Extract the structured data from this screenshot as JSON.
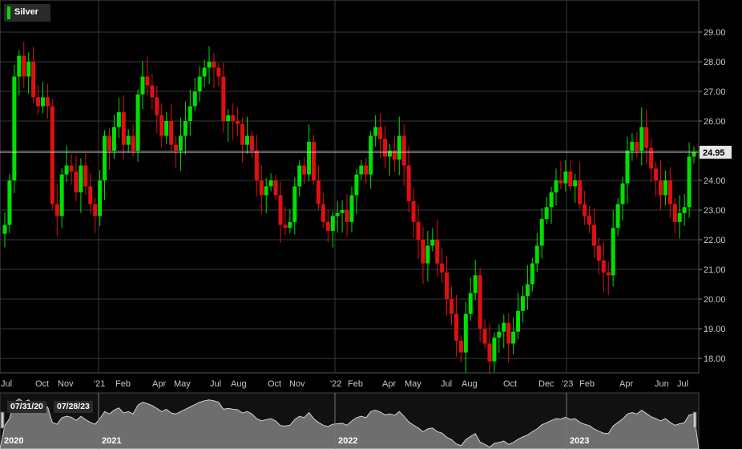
{
  "chart_data": {
    "type": "candlestick",
    "instrument": "Silver",
    "last_price": "24.95",
    "ylim": [
      17.6,
      30.0
    ],
    "y_ticks": [
      "18.00",
      "19.00",
      "20.00",
      "21.00",
      "22.00",
      "23.00",
      "24.00",
      "25.00",
      "26.00",
      "27.00",
      "28.00",
      "29.00"
    ],
    "x_tick_labels": [
      "Jul",
      "Oct",
      "Nov",
      "'21",
      "Feb",
      "Apr",
      "May",
      "Jul",
      "Aug",
      "Oct",
      "Nov",
      "'22",
      "Feb",
      "Apr",
      "May",
      "Jul",
      "Aug",
      "Oct",
      "Dec",
      "'23",
      "Feb",
      "Apr",
      "Jun",
      "Jul"
    ],
    "grid": true,
    "navigator": {
      "range_start": "07/31/20",
      "range_end": "07/28/23",
      "years": [
        "2020",
        "2021",
        "2022",
        "2023"
      ]
    },
    "series": [
      {
        "weeks": "Jul 2020",
        "close": [
          22.5,
          24.0,
          27.5,
          28.2
        ]
      },
      {
        "weeks": "Aug 2020",
        "close": [
          27.5,
          28.0,
          26.8,
          26.5
        ]
      },
      {
        "weeks": "Sep 2020",
        "close": [
          26.8,
          26.5,
          23.2,
          22.8
        ]
      },
      {
        "weeks": "Oct 2020",
        "close": [
          24.2,
          24.5,
          24.3,
          23.6
        ]
      },
      {
        "weeks": "Nov 2020",
        "close": [
          24.5,
          23.8,
          23.2,
          22.8,
          24.0
        ]
      },
      {
        "weeks": "Dec 2020",
        "close": [
          25.5,
          25.0,
          25.8,
          26.3
        ]
      },
      {
        "weeks": "Jan 2021",
        "close": [
          25.2,
          25.5,
          25.0,
          26.9
        ]
      },
      {
        "weeks": "Feb 2021",
        "close": [
          27.5,
          27.2,
          26.8,
          26.2
        ]
      },
      {
        "weeks": "Mar 2021",
        "close": [
          25.5,
          26.0,
          25.2,
          25.0
        ]
      },
      {
        "weeks": "Apr 2021",
        "close": [
          25.5,
          26.0,
          26.5,
          27.0
        ]
      },
      {
        "weeks": "May 2021",
        "close": [
          27.5,
          27.8,
          28.0,
          27.8
        ]
      },
      {
        "weeks": "Jun 2021",
        "close": [
          27.5,
          26.0,
          26.2,
          26.0
        ]
      },
      {
        "weeks": "Jul 2021",
        "close": [
          25.9,
          25.2,
          25.5,
          25.0
        ]
      },
      {
        "weeks": "Aug 2021",
        "close": [
          24.0,
          23.5,
          23.8,
          24.0
        ]
      },
      {
        "weeks": "Sep 2021",
        "close": [
          23.5,
          22.5,
          22.4,
          22.6
        ]
      },
      {
        "weeks": "Oct 2021",
        "close": [
          23.8,
          24.5,
          24.2,
          25.3
        ]
      },
      {
        "weeks": "Nov 2021",
        "close": [
          24.0,
          23.2,
          22.6,
          22.3
        ]
      },
      {
        "weeks": "Dec 2021",
        "close": [
          22.8,
          22.9,
          23.0,
          22.6
        ]
      },
      {
        "weeks": "Jan 2022",
        "close": [
          23.5,
          24.2,
          24.5,
          24.2
        ]
      },
      {
        "weeks": "Feb 2022",
        "close": [
          25.5,
          25.8,
          25.4,
          24.8
        ]
      },
      {
        "weeks": "Mar 2022",
        "close": [
          25.0,
          24.7,
          25.5,
          24.5
        ]
      },
      {
        "weeks": "Apr 2022",
        "close": [
          23.3,
          22.6,
          22.0,
          21.2
        ]
      },
      {
        "weeks": "May 2022",
        "close": [
          21.8,
          22.0,
          21.2,
          20.9
        ]
      },
      {
        "weeks": "Jun 2022",
        "close": [
          20.0,
          19.5,
          18.6,
          18.2
        ]
      },
      {
        "weeks": "Jul 2022",
        "close": [
          19.5,
          20.2,
          20.8,
          19.0
        ]
      },
      {
        "weeks": "Aug 2022",
        "close": [
          18.5,
          17.9,
          18.7,
          18.9
        ]
      },
      {
        "weeks": "Sep 2022",
        "close": [
          19.2,
          18.5,
          18.9,
          19.6
        ]
      },
      {
        "weeks": "Oct 2022",
        "close": [
          20.1,
          20.5,
          21.2,
          21.8
        ]
      },
      {
        "weeks": "Nov 2022",
        "close": [
          22.7,
          23.1,
          23.6,
          24.0
        ]
      },
      {
        "weeks": "Dec 2022",
        "close": [
          23.9,
          24.3,
          23.8,
          24.0
        ]
      },
      {
        "weeks": "Jan 2023",
        "close": [
          23.2,
          22.8,
          22.5,
          21.8
        ]
      },
      {
        "weeks": "Feb 2023",
        "close": [
          21.3,
          20.9,
          20.8,
          22.4
        ]
      },
      {
        "weeks": "Mar 2023",
        "close": [
          23.2,
          23.9,
          25.0,
          25.3
        ]
      },
      {
        "weeks": "Apr 2023",
        "close": [
          25.0,
          25.8,
          25.1,
          24.4
        ]
      },
      {
        "weeks": "May 2023",
        "close": [
          24.0,
          23.5,
          24.0,
          23.2
        ]
      },
      {
        "weeks": "Jun 2023",
        "close": [
          22.6,
          22.9,
          23.1,
          24.8
        ]
      },
      {
        "weeks": "Jul 2023",
        "close": [
          24.95
        ]
      }
    ]
  }
}
